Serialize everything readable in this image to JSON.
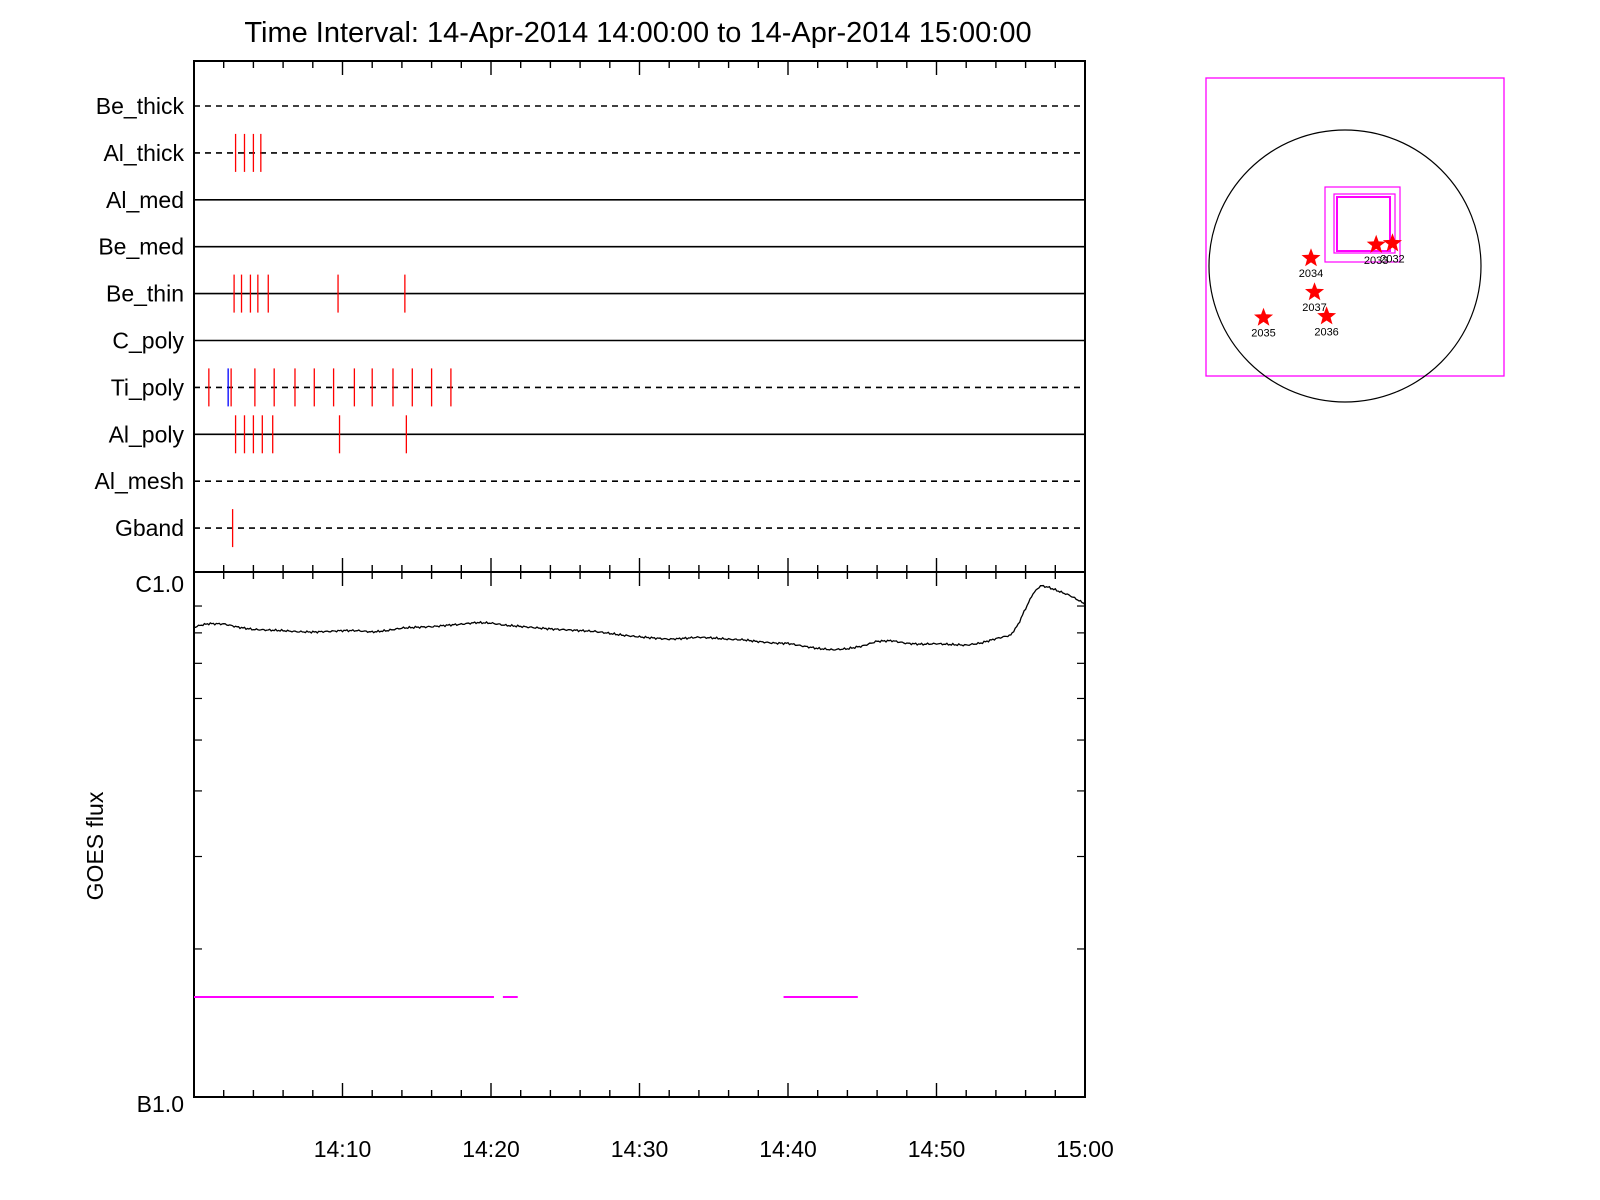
{
  "chart_data": [
    {
      "type": "timeline",
      "title": "Time Interval: 14-Apr-2014 14:00:00 to 14-Apr-2014 15:00:00",
      "time_range": [
        "14:00",
        "15:00"
      ],
      "filters": [
        {
          "name": "Be_thick",
          "line": "dashed",
          "marks": []
        },
        {
          "name": "Al_thick",
          "line": "dashed",
          "marks": [
            {
              "t": 2.8,
              "color": "#ff0000"
            },
            {
              "t": 3.4,
              "color": "#ff0000"
            },
            {
              "t": 4.0,
              "color": "#ff0000"
            },
            {
              "t": 4.5,
              "color": "#ff0000"
            }
          ]
        },
        {
          "name": "Al_med",
          "line": "solid",
          "marks": []
        },
        {
          "name": "Be_med",
          "line": "solid",
          "marks": []
        },
        {
          "name": "Be_thin",
          "line": "solid",
          "marks": [
            {
              "t": 2.7,
              "color": "#ff0000"
            },
            {
              "t": 3.2,
              "color": "#ff0000"
            },
            {
              "t": 3.8,
              "color": "#ff0000"
            },
            {
              "t": 4.3,
              "color": "#ff0000"
            },
            {
              "t": 5.0,
              "color": "#ff0000"
            },
            {
              "t": 9.7,
              "color": "#ff0000"
            },
            {
              "t": 14.2,
              "color": "#ff0000"
            }
          ]
        },
        {
          "name": "C_poly",
          "line": "solid",
          "marks": []
        },
        {
          "name": "Ti_poly",
          "line": "dashed",
          "marks": [
            {
              "t": 1.0,
              "color": "#ff0000"
            },
            {
              "t": 2.3,
              "color": "#0000ff"
            },
            {
              "t": 2.5,
              "color": "#ff0000"
            },
            {
              "t": 4.1,
              "color": "#ff0000"
            },
            {
              "t": 5.4,
              "color": "#ff0000"
            },
            {
              "t": 6.8,
              "color": "#ff0000"
            },
            {
              "t": 8.1,
              "color": "#ff0000"
            },
            {
              "t": 9.4,
              "color": "#ff0000"
            },
            {
              "t": 10.8,
              "color": "#ff0000"
            },
            {
              "t": 12.0,
              "color": "#ff0000"
            },
            {
              "t": 13.4,
              "color": "#ff0000"
            },
            {
              "t": 14.7,
              "color": "#ff0000"
            },
            {
              "t": 16.0,
              "color": "#ff0000"
            },
            {
              "t": 17.3,
              "color": "#ff0000"
            }
          ]
        },
        {
          "name": "Al_poly",
          "line": "solid",
          "marks": [
            {
              "t": 2.8,
              "color": "#ff0000"
            },
            {
              "t": 3.4,
              "color": "#ff0000"
            },
            {
              "t": 4.0,
              "color": "#ff0000"
            },
            {
              "t": 4.6,
              "color": "#ff0000"
            },
            {
              "t": 5.3,
              "color": "#ff0000"
            },
            {
              "t": 9.8,
              "color": "#ff0000"
            },
            {
              "t": 14.3,
              "color": "#ff0000"
            }
          ]
        },
        {
          "name": "Al_mesh",
          "line": "dashed",
          "marks": []
        },
        {
          "name": "Gband",
          "line": "dashed",
          "marks": [
            {
              "t": 2.6,
              "color": "#ff0000"
            }
          ]
        }
      ]
    },
    {
      "type": "line",
      "ylabel": "GOES flux",
      "xlabel": "",
      "x_ticks": [
        "14:10",
        "14:20",
        "14:30",
        "14:40",
        "14:50",
        "15:00"
      ],
      "y_ticks": [
        "C1.0",
        "B1.0"
      ],
      "ylim": [
        1e-07,
        1e-06
      ],
      "yscale": "log",
      "xlim_minutes": [
        0,
        60
      ],
      "series": [
        {
          "color": "#000000",
          "x": [
            0,
            0.5,
            1,
            2,
            3,
            4,
            5,
            6,
            7,
            8,
            9,
            10,
            11,
            12,
            13,
            14,
            15,
            16,
            17,
            18,
            19,
            20,
            21,
            22,
            23,
            24,
            25,
            26,
            27,
            28,
            29,
            30,
            31,
            32,
            33,
            34,
            35,
            36,
            37,
            38,
            39,
            40,
            41,
            42,
            43,
            44,
            45,
            46,
            47,
            48,
            49,
            50,
            51,
            52,
            53,
            54,
            55,
            55.5,
            56,
            56.5,
            57,
            57.5,
            58,
            59,
            60
          ],
          "y": [
            8.2e-07,
            8.28e-07,
            8.33e-07,
            8.32e-07,
            8.2e-07,
            8.12e-07,
            8.1e-07,
            8.08e-07,
            8.04e-07,
            8.03e-07,
            8.05e-07,
            8.08e-07,
            8.08e-07,
            8.03e-07,
            8.08e-07,
            8.17e-07,
            8.2e-07,
            8.22e-07,
            8.27e-07,
            8.31e-07,
            8.37e-07,
            8.35e-07,
            8.27e-07,
            8.23e-07,
            8.18e-07,
            8.14e-07,
            8.11e-07,
            8.08e-07,
            8.05e-07,
            7.98e-07,
            7.91e-07,
            7.86e-07,
            7.82e-07,
            7.78e-07,
            7.81e-07,
            7.85e-07,
            7.82e-07,
            7.78e-07,
            7.76e-07,
            7.7e-07,
            7.65e-07,
            7.64e-07,
            7.55e-07,
            7.47e-07,
            7.43e-07,
            7.46e-07,
            7.55e-07,
            7.71e-07,
            7.73e-07,
            7.64e-07,
            7.61e-07,
            7.63e-07,
            7.6e-07,
            7.58e-07,
            7.65e-07,
            7.8e-07,
            7.92e-07,
            8.3e-07,
            8.9e-07,
            9.5e-07,
            9.84e-07,
            9.78e-07,
            9.66e-07,
            9.42e-07,
            9.08e-07
          ]
        }
      ],
      "segments": {
        "color": "#ff00ff",
        "level": 1.62e-07,
        "ranges": [
          [
            0,
            20.2
          ],
          [
            20.8,
            21.8
          ],
          [
            39.7,
            44.7
          ]
        ]
      }
    },
    {
      "type": "scatter",
      "solar_map": true,
      "points": [
        {
          "label": "2032",
          "x": 335,
          "y": 160
        },
        {
          "label": "2033",
          "x": 220,
          "y": 150
        },
        {
          "label": "2034",
          "x": -240,
          "y": 55
        },
        {
          "label": "2035",
          "x": -575,
          "y": -365
        },
        {
          "label": "2036",
          "x": -130,
          "y": -355
        },
        {
          "label": "2037",
          "x": -215,
          "y": -185
        }
      ]
    }
  ]
}
